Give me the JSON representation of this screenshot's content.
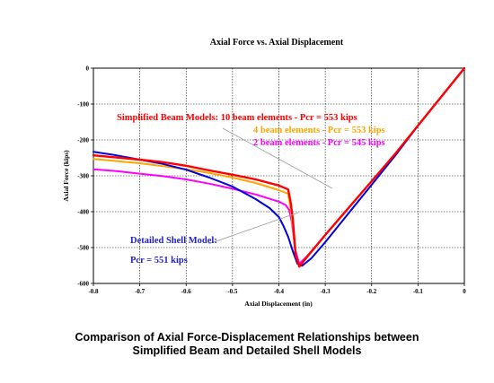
{
  "chart_data": {
    "type": "line",
    "title": "Axial Force vs. Axial Displacement",
    "xlabel": "Axial Displacement (in)",
    "ylabel": "Axial Force (kips)",
    "xlim": [
      -0.8,
      0
    ],
    "ylim": [
      -600,
      0
    ],
    "xticks": [
      "-0.8",
      "-0.7",
      "-0.6",
      "-0.5",
      "-0.4",
      "-0.3",
      "-0.2",
      "-0.1",
      "0"
    ],
    "yticks": [
      "0",
      "-100",
      "-200",
      "-300",
      "-400",
      "-500",
      "-600"
    ],
    "grid": true,
    "series": [
      {
        "name": "10 beam elements - Pcr = 553 kips",
        "color": "#ff0000",
        "x": [
          0,
          -0.05,
          -0.1,
          -0.15,
          -0.2,
          -0.25,
          -0.3,
          -0.34,
          -0.356,
          -0.364,
          -0.37,
          -0.375,
          -0.38,
          -0.4,
          -0.45,
          -0.5,
          -0.55,
          -0.6,
          -0.65,
          -0.7,
          -0.75,
          -0.8
        ],
        "y": [
          0,
          -80,
          -160,
          -240,
          -315,
          -390,
          -465,
          -527,
          -553,
          -520,
          -420,
          -370,
          -338,
          -327,
          -310,
          -297,
          -285,
          -272,
          -262,
          -255,
          -249,
          -243
        ]
      },
      {
        "name": "4 beam elements - Pcr = 553 kips",
        "color": "#ffa500",
        "x": [
          0,
          -0.05,
          -0.1,
          -0.15,
          -0.2,
          -0.25,
          -0.3,
          -0.34,
          -0.356,
          -0.364,
          -0.37,
          -0.375,
          -0.38,
          -0.4,
          -0.45,
          -0.5,
          -0.55,
          -0.6,
          -0.65,
          -0.7,
          -0.75,
          -0.8
        ],
        "y": [
          0,
          -80,
          -160,
          -240,
          -315,
          -390,
          -465,
          -527,
          -553,
          -525,
          -440,
          -390,
          -350,
          -340,
          -320,
          -305,
          -292,
          -282,
          -273,
          -265,
          -259,
          -253
        ]
      },
      {
        "name": "2 beam elements - Pcr = 545 kips",
        "color": "#ff00ff",
        "x": [
          0,
          -0.05,
          -0.1,
          -0.15,
          -0.2,
          -0.25,
          -0.3,
          -0.34,
          -0.356,
          -0.365,
          -0.372,
          -0.378,
          -0.385,
          -0.4,
          -0.45,
          -0.5,
          -0.55,
          -0.6,
          -0.65,
          -0.7,
          -0.75,
          -0.8
        ],
        "y": [
          0,
          -80,
          -160,
          -240,
          -315,
          -390,
          -465,
          -525,
          -545,
          -505,
          -430,
          -395,
          -382,
          -372,
          -352,
          -336,
          -322,
          -310,
          -301,
          -294,
          -287,
          -282
        ]
      },
      {
        "name": "Detailed Shell Model: Pcr = 551 kips",
        "color": "#0000dd",
        "x": [
          0,
          -0.05,
          -0.1,
          -0.15,
          -0.2,
          -0.25,
          -0.3,
          -0.33,
          -0.35,
          -0.36,
          -0.37,
          -0.38,
          -0.39,
          -0.4,
          -0.42,
          -0.45,
          -0.5,
          -0.55,
          -0.6,
          -0.65,
          -0.7,
          -0.75,
          -0.8
        ],
        "y": [
          0,
          -80,
          -160,
          -245,
          -325,
          -405,
          -485,
          -530,
          -551,
          -545,
          -510,
          -470,
          -440,
          -415,
          -390,
          -365,
          -330,
          -305,
          -283,
          -267,
          -255,
          -243,
          -233
        ]
      }
    ],
    "annotations": {
      "beam_header": "Simplified Beam Models: 10 beam elements - Pcr = 553 kips",
      "beam_4": "4 beam elements - Pcr = 553 kips",
      "beam_2": "2 beam elements - Pcr = 545 kips",
      "shell_1": "Detailed Shell Model:",
      "shell_2": "Pcr = 551 kips"
    }
  },
  "caption": {
    "line1": "Comparison of Axial Force-Displacement Relationships between",
    "line2": "Simplified Beam and Detailed Shell Models"
  }
}
